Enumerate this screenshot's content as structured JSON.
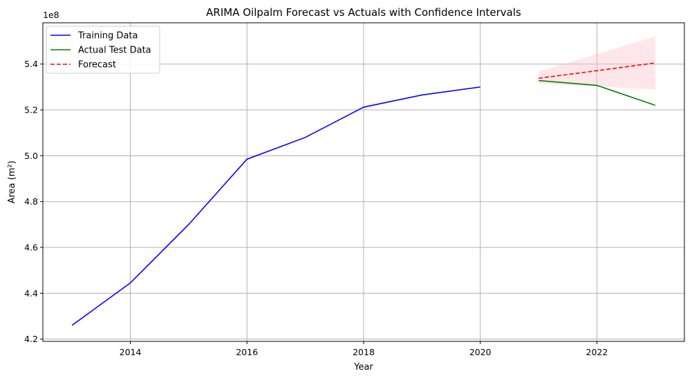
{
  "chart_data": {
    "type": "line",
    "title": "ARIMA Oilpalm Forecast vs Actuals with Confidence Intervals",
    "xlabel": "Year",
    "ylabel": "Area (m²)",
    "y_scale_label": "1e8",
    "y_scale": 100000000,
    "xlim": [
      2012.5,
      2023.5
    ],
    "ylim": [
      4.19,
      5.58
    ],
    "x_ticks": [
      2014,
      2016,
      2018,
      2020,
      2022
    ],
    "y_ticks": [
      4.2,
      4.4,
      4.6,
      4.8,
      5.0,
      5.2,
      5.4
    ],
    "grid": true,
    "legend_position": "upper-left",
    "series": [
      {
        "name": "Training Data",
        "color": "#0000ff",
        "style": "solid",
        "x": [
          2013,
          2014,
          2015,
          2016,
          2017,
          2018,
          2019,
          2020
        ],
        "y": [
          4.26,
          4.445,
          4.7,
          4.985,
          5.08,
          5.212,
          5.265,
          5.3
        ]
      },
      {
        "name": "Actual Test Data",
        "color": "#008000",
        "style": "solid",
        "x": [
          2021,
          2022,
          2023
        ],
        "y": [
          5.328,
          5.307,
          5.22
        ]
      },
      {
        "name": "Forecast",
        "color": "#ff0000",
        "style": "dashed",
        "x": [
          2021,
          2022,
          2023
        ],
        "y": [
          5.338,
          5.371,
          5.405
        ]
      }
    ],
    "confidence_interval": {
      "color": "#ffc0cb",
      "x": [
        2021,
        2022,
        2023
      ],
      "lower": [
        5.314,
        5.302,
        5.289
      ],
      "upper": [
        5.367,
        5.443,
        5.521
      ]
    }
  }
}
